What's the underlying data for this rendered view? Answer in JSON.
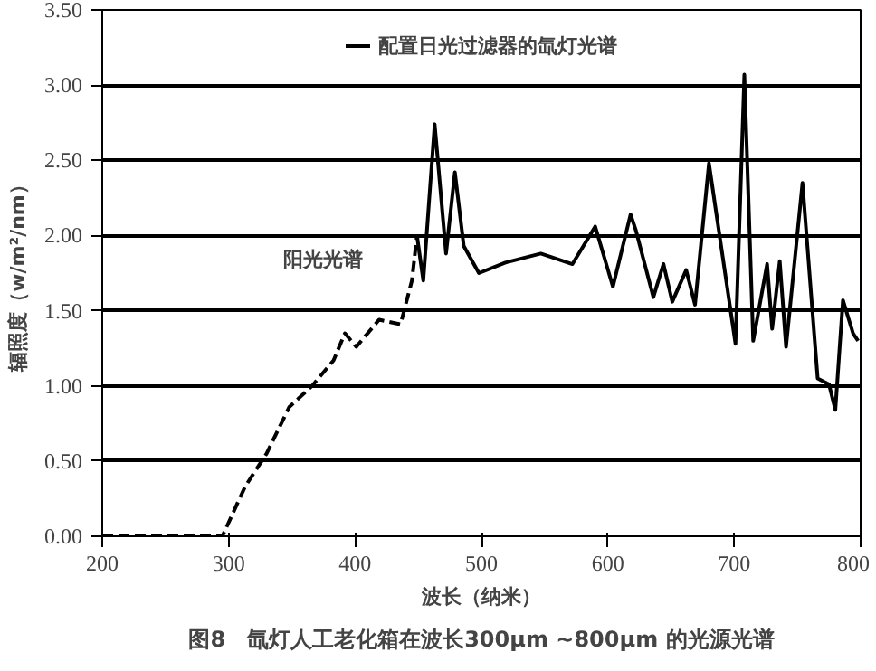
{
  "chart_data": {
    "type": "line",
    "title": "图8　氙灯人工老化箱在波长300μm ~800μm 的光源光谱",
    "xlabel": "波长（纳米）",
    "ylabel": "辐照度（w/m²/nm）",
    "xlim": [
      200,
      800
    ],
    "xticks": [
      200,
      300,
      400,
      500,
      600,
      700,
      800
    ],
    "ylim": [
      0,
      3.5
    ],
    "yticks": [
      {
        "value": 0,
        "label": "0.00"
      },
      {
        "value": 0.5,
        "label": "0.50"
      },
      {
        "value": 1,
        "label": "1.00"
      },
      {
        "value": 1.5,
        "label": "1.50"
      },
      {
        "value": 2,
        "label": "2.00"
      },
      {
        "value": 2.5,
        "label": "2.50"
      },
      {
        "value": 3,
        "label": "3.00"
      },
      {
        "value": 3.5,
        "label": "3.50"
      }
    ],
    "grid": "y",
    "legend": "top",
    "series": [
      {
        "name": "阳光光谱",
        "color": "#000000",
        "line_style": "dashed",
        "x": [
          200,
          295,
          313,
          330,
          348,
          366,
          383,
          392,
          401,
          419,
          436,
          445,
          449
        ],
        "values": [
          0,
          0,
          0.33,
          0.55,
          0.86,
          1.0,
          1.17,
          1.35,
          1.26,
          1.44,
          1.41,
          1.7,
          2.0
        ]
      },
      {
        "name": "配置日光过滤器的氙灯光谱",
        "color": "#000000",
        "line_style": "solid",
        "x": [
          449,
          454,
          463,
          472,
          479,
          486,
          498,
          519,
          547,
          572,
          590,
          604,
          618,
          622,
          636,
          644,
          651,
          662,
          669,
          680,
          701,
          708,
          715,
          726,
          730,
          736,
          741,
          754,
          766,
          775,
          780,
          786,
          794,
          798
        ],
        "values": [
          2.0,
          1.7,
          2.74,
          1.88,
          2.42,
          1.93,
          1.75,
          1.82,
          1.88,
          1.81,
          2.06,
          1.66,
          2.14,
          2.04,
          1.59,
          1.81,
          1.56,
          1.77,
          1.54,
          2.48,
          1.28,
          3.07,
          1.3,
          1.81,
          1.38,
          1.83,
          1.26,
          2.35,
          1.05,
          1.01,
          0.84,
          1.57,
          1.35,
          1.3
        ]
      }
    ]
  }
}
